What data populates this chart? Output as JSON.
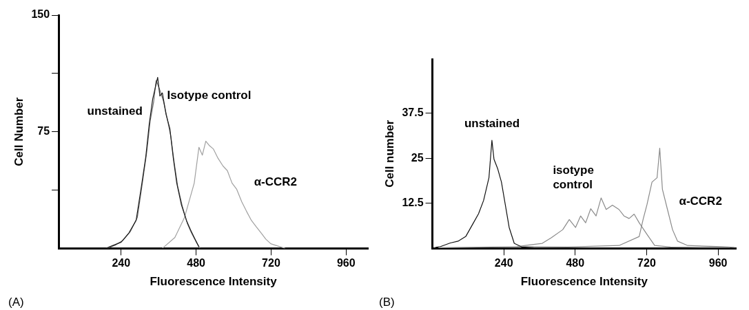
{
  "chart_data": [
    {
      "type": "line",
      "xlabel": "Fluorescence Intensity",
      "ylabel": "Cell Number",
      "xlim": [
        40,
        1030
      ],
      "ylim": [
        0,
        150
      ],
      "xticks": [
        240,
        480,
        720,
        960
      ],
      "yticks": [
        {
          "value": 37.5,
          "label": null
        },
        75,
        {
          "value": 112.5,
          "label": null
        },
        150
      ],
      "annotations": [
        "(A)"
      ],
      "series": [
        {
          "name": "unstained",
          "color": "#1a1a1a",
          "x": [
            191,
            215,
            240,
            265,
            288,
            305,
            319,
            330,
            341,
            350,
            357,
            364,
            372,
            384,
            396,
            407,
            418,
            433,
            449,
            462,
            474,
            489
          ],
          "values": [
            0,
            2,
            4,
            10,
            18,
            40,
            59,
            80,
            96,
            104,
            110,
            98,
            100,
            86,
            77,
            58,
            42,
            28,
            18,
            12,
            7,
            1
          ]
        },
        {
          "name": "Isotype control",
          "color": "#6e6e6e",
          "x": [
            195,
            220,
            245,
            270,
            292,
            308,
            322,
            333,
            344,
            352,
            360,
            367,
            375,
            387,
            399,
            410,
            421,
            436,
            452,
            465,
            478,
            492
          ],
          "values": [
            0,
            2,
            5,
            11,
            20,
            42,
            62,
            82,
            94,
            108,
            104,
            100,
            95,
            84,
            72,
            55,
            40,
            27,
            16,
            10,
            5,
            0
          ]
        },
        {
          "name": "α-CCR2",
          "color": "#a0a0a0",
          "x": [
            372,
            412,
            443,
            474,
            489,
            500,
            511,
            523,
            535,
            550,
            566,
            580,
            595,
            610,
            626,
            641,
            657,
            672,
            688,
            703,
            719,
            765
          ],
          "values": [
            0,
            7,
            20,
            42,
            65,
            60,
            69,
            66,
            64,
            58,
            53,
            50,
            42,
            38,
            30,
            24,
            18,
            14,
            10,
            6,
            3,
            0
          ]
        }
      ]
    },
    {
      "type": "line",
      "xlabel": "Fluorescence Intensity",
      "ylabel": "Cell number",
      "xlim": [
        0,
        1020
      ],
      "ylim": [
        0,
        52.5
      ],
      "xticks": [
        240,
        480,
        720,
        960
      ],
      "yticks": [
        12.5,
        25,
        37.5
      ],
      "annotations": [
        "(B)"
      ],
      "series": [
        {
          "name": "unstained",
          "color": "#111111",
          "x": [
            10,
            27,
            60,
            86,
            112,
            138,
            155,
            172,
            190,
            200,
            207,
            219,
            232,
            245,
            258,
            275,
            300,
            340
          ],
          "values": [
            0.3,
            0.5,
            1.5,
            2.0,
            3.3,
            7.1,
            9.6,
            13.3,
            19.6,
            30,
            24.7,
            22.2,
            18.4,
            12.1,
            5.8,
            1.4,
            0.4,
            0.2
          ]
        },
        {
          "name": "isotype control",
          "color": "#8a8a8a",
          "x": [
            284,
            330,
            369,
            400,
            438,
            460,
            481,
            498,
            515,
            532,
            550,
            567,
            584,
            605,
            627,
            644,
            661,
            678,
            695,
            721,
            747,
            800,
            900,
            1000
          ],
          "values": [
            0.5,
            1.0,
            1.4,
            3.0,
            5.2,
            8.0,
            5.8,
            9.0,
            7.1,
            11.0,
            9.0,
            14.0,
            10.8,
            12.0,
            10.8,
            9.0,
            8.3,
            9.5,
            7.1,
            3.9,
            0.8,
            0.4,
            0.3,
            0.3
          ]
        },
        {
          "name": "α-CCR2",
          "color": "#8a8a8a",
          "x": [
            20,
            198,
            300,
            455,
            627,
            695,
            708,
            721,
            738,
            755,
            764,
            773,
            790,
            807,
            824,
            858,
            970,
            1015
          ],
          "values": [
            0.2,
            0.4,
            0.5,
            0.4,
            0.8,
            3.3,
            8.0,
            12.1,
            18.4,
            19.6,
            27.8,
            16.4,
            10.8,
            5.2,
            2.0,
            0.8,
            0.5,
            0.3
          ]
        }
      ]
    }
  ]
}
